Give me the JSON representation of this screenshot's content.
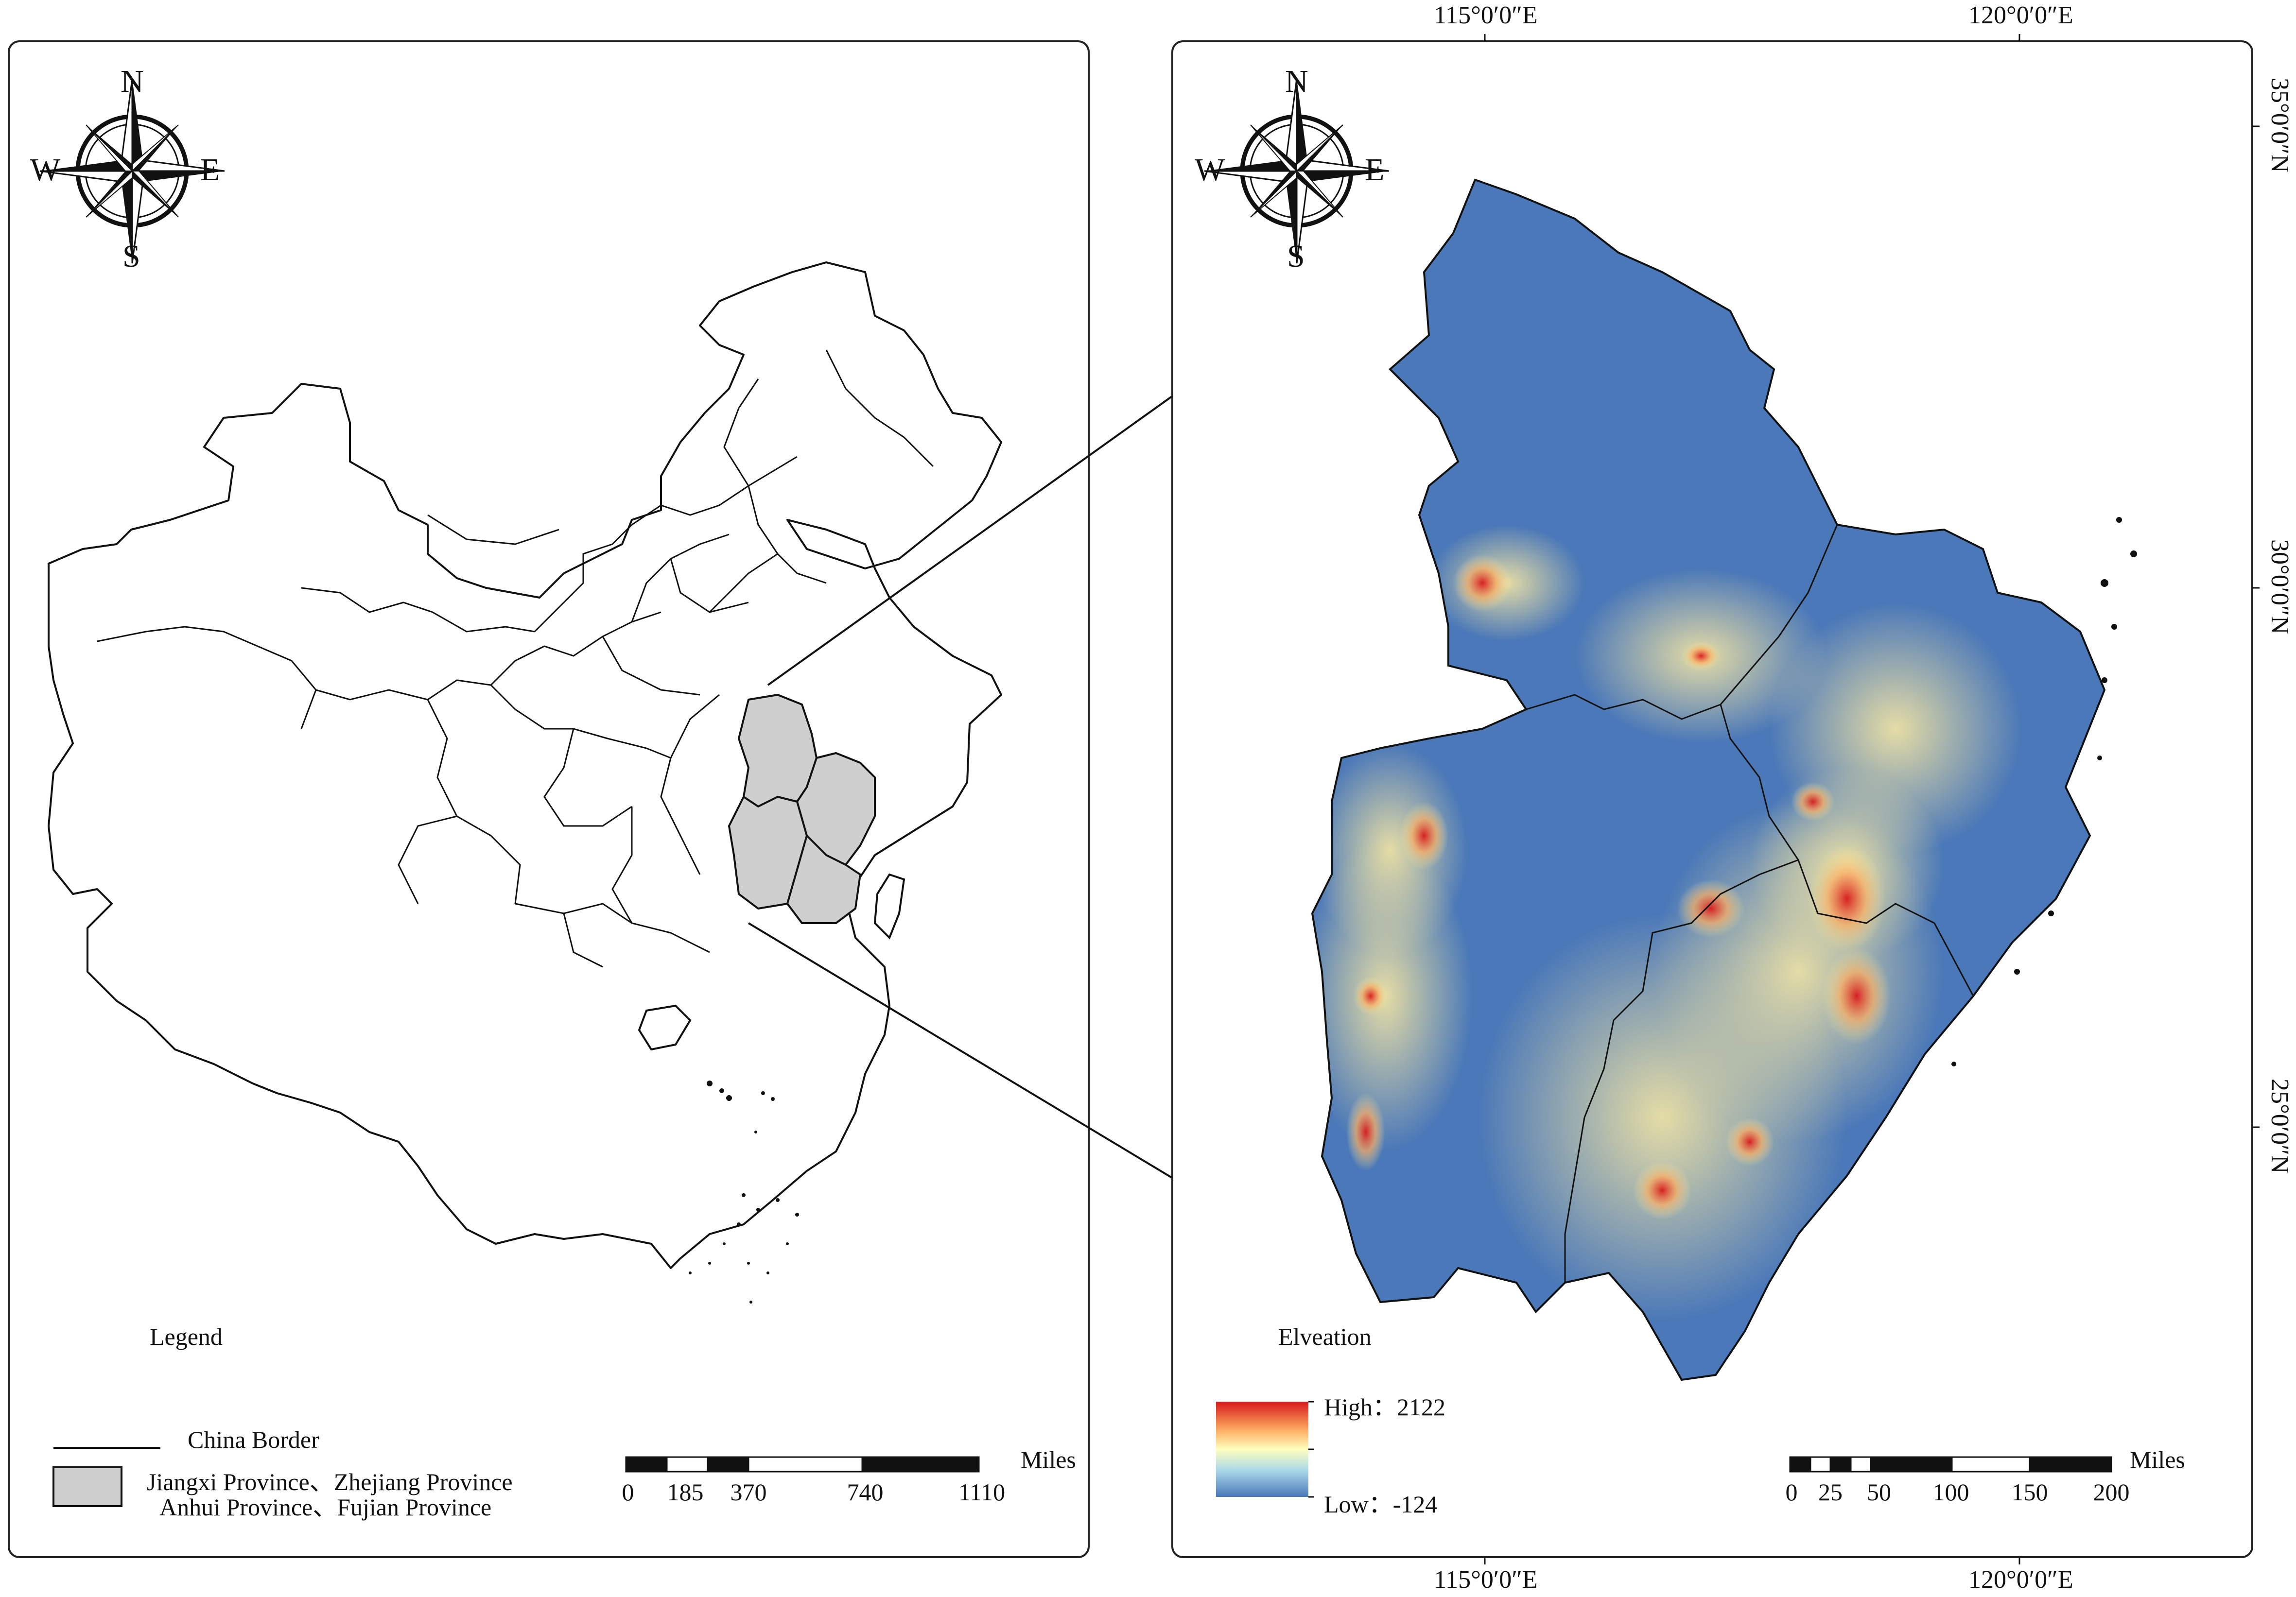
{
  "left_panel": {
    "compass": {
      "icon": "compass-rose-icon",
      "n": "N",
      "s": "S",
      "e": "E",
      "w": "W"
    },
    "legend": {
      "title": "Legend",
      "border_label": "China Border",
      "provinces_line1": "Jiangxi Province、Zhejiang Province",
      "provinces_line2": "Anhui Province、Fujian Province",
      "highlight_color": "#cfcfcf"
    },
    "scalebar": {
      "unit": "Miles",
      "ticks": [
        "0",
        "185",
        "370",
        "740",
        "1110"
      ]
    }
  },
  "right_panel": {
    "compass": {
      "icon": "compass-rose-icon",
      "n": "N",
      "s": "S",
      "e": "E",
      "w": "W"
    },
    "top_lon_labels": [
      "115°0′0″E",
      "120°0′0″E"
    ],
    "bottom_lon_labels": [
      "115°0′0″E",
      "120°0′0″E"
    ],
    "lat_labels": [
      "35°0′0″N",
      "30°0′0″N",
      "25°0′0″N"
    ],
    "legend": {
      "title": "Elveation",
      "high_label": "High：2122",
      "low_label": "Low：-124",
      "ramp_colors": [
        "#d7191c",
        "#fdae61",
        "#ffffbf",
        "#abd9e9",
        "#4a78b8"
      ]
    },
    "scalebar": {
      "unit": "Miles",
      "ticks": [
        "0",
        "25",
        "50",
        "100",
        "150",
        "200"
      ]
    }
  },
  "colors": {
    "low_elevation": "#4a78b8",
    "mid_elevation": "#f3eaa0",
    "high_elevation": "#d7191c",
    "frame": "#222222"
  }
}
